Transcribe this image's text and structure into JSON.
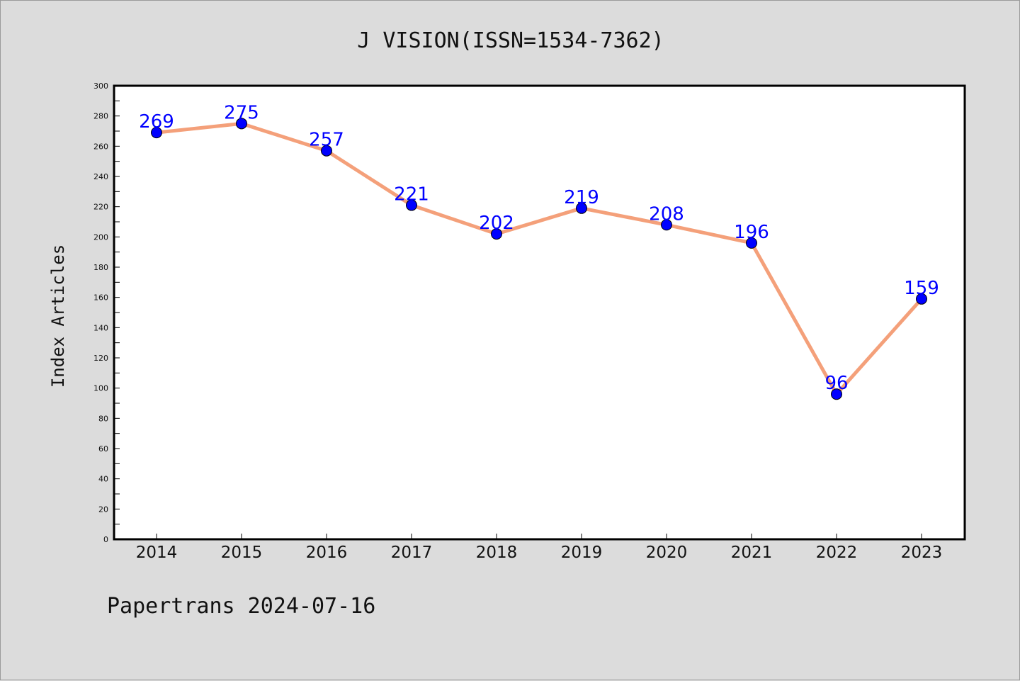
{
  "chart_data": {
    "type": "line",
    "title": "J VISION(ISSN=1534-7362)",
    "ylabel": "Index Articles",
    "xlabel": "",
    "categories": [
      "2014",
      "2015",
      "2016",
      "2017",
      "2018",
      "2019",
      "2020",
      "2021",
      "2022",
      "2023"
    ],
    "series": [
      {
        "values": [
          269,
          275,
          257,
          221,
          202,
          219,
          208,
          196,
          96,
          159
        ]
      }
    ],
    "ylim": [
      0,
      300
    ],
    "yticks": [
      0,
      20,
      40,
      60,
      80,
      100,
      120,
      140,
      160,
      180,
      200,
      220,
      240,
      260,
      280,
      300
    ],
    "grid": false,
    "legend": "none",
    "line_color": "#f4a07a",
    "marker_color": "#0000ff",
    "label_color": "#0000ff"
  },
  "footer": "Papertrans 2024-07-16"
}
